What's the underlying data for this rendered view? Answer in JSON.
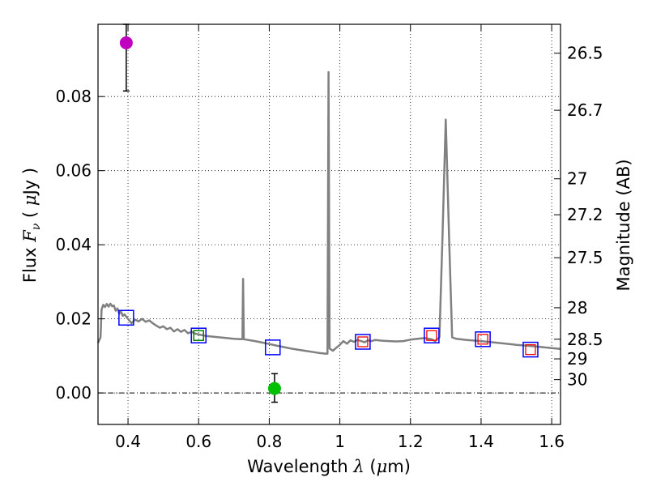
{
  "chart_data": {
    "type": "scatter",
    "xlabel": "Wavelength",
    "xlabel_symbol": "λ",
    "xlabel_unit_pre": "(",
    "xlabel_unit_mu": "μ",
    "xlabel_unit_post": "m)",
    "ylabel_prefix": "Flux",
    "ylabel_symbol": "F",
    "ylabel_subscript": "ν",
    "ylabel_unit_pre": "(",
    "ylabel_unit_mu": "μ",
    "ylabel_unit_post": "Jy )",
    "ylabel_right": "Magnitude (AB)",
    "xlim": [
      0.315,
      1.625
    ],
    "ylim": [
      -0.0085,
      0.0995
    ],
    "grid": true,
    "colors": {
      "spectrum": "#808080",
      "magenta_point": "#bf00bf",
      "green_point": "#00c000",
      "blue_box": "#0000ff",
      "green_box": "#008000",
      "red_box": "#ff0000",
      "errorbar": "#000000"
    },
    "xticks": [
      0.4,
      0.6,
      0.8,
      1.0,
      1.2,
      1.4,
      1.6
    ],
    "xtick_labels": [
      "0.4",
      "0.6",
      "0.8",
      "1",
      "1.2",
      "1.4",
      "1.6"
    ],
    "yticks": [
      0.0,
      0.02,
      0.04,
      0.06,
      0.08
    ],
    "ytick_labels": [
      "0.00",
      "0.02",
      "0.04",
      "0.06",
      "0.08"
    ],
    "right_ticks": [
      {
        "label": "26.5",
        "flux": 0.0917
      },
      {
        "label": "26.7",
        "flux": 0.0763
      },
      {
        "label": "27",
        "flux": 0.0578
      },
      {
        "label": "27.2",
        "flux": 0.0481
      },
      {
        "label": "27.5",
        "flux": 0.0365
      },
      {
        "label": "28",
        "flux": 0.023
      },
      {
        "label": "28.5",
        "flux": 0.0145
      },
      {
        "label": "29",
        "flux": 0.0092
      },
      {
        "label": "30",
        "flux": 0.0036
      }
    ],
    "spectrum": [
      [
        0.315,
        0.0135
      ],
      [
        0.322,
        0.015
      ],
      [
        0.325,
        0.0225
      ],
      [
        0.33,
        0.0238
      ],
      [
        0.335,
        0.0232
      ],
      [
        0.34,
        0.024
      ],
      [
        0.345,
        0.0233
      ],
      [
        0.35,
        0.0241
      ],
      [
        0.355,
        0.0234
      ],
      [
        0.36,
        0.0236
      ],
      [
        0.365,
        0.0222
      ],
      [
        0.37,
        0.0228
      ],
      [
        0.375,
        0.0214
      ],
      [
        0.38,
        0.022
      ],
      [
        0.385,
        0.0208
      ],
      [
        0.39,
        0.0212
      ],
      [
        0.4,
        0.02
      ],
      [
        0.41,
        0.0188
      ],
      [
        0.42,
        0.0198
      ],
      [
        0.43,
        0.0193
      ],
      [
        0.44,
        0.02
      ],
      [
        0.45,
        0.0192
      ],
      [
        0.46,
        0.0196
      ],
      [
        0.47,
        0.0188
      ],
      [
        0.48,
        0.0182
      ],
      [
        0.49,
        0.0176
      ],
      [
        0.5,
        0.018
      ],
      [
        0.51,
        0.0172
      ],
      [
        0.52,
        0.0176
      ],
      [
        0.53,
        0.0166
      ],
      [
        0.54,
        0.0172
      ],
      [
        0.55,
        0.0165
      ],
      [
        0.56,
        0.017
      ],
      [
        0.57,
        0.0161
      ],
      [
        0.58,
        0.0165
      ],
      [
        0.59,
        0.016
      ],
      [
        0.6,
        0.0158
      ],
      [
        0.62,
        0.0154
      ],
      [
        0.64,
        0.0152
      ],
      [
        0.66,
        0.015
      ],
      [
        0.68,
        0.0148
      ],
      [
        0.7,
        0.0146
      ],
      [
        0.72,
        0.0145
      ],
      [
        0.724,
        0.0145
      ],
      [
        0.726,
        0.0308
      ],
      [
        0.728,
        0.0145
      ],
      [
        0.74,
        0.0143
      ],
      [
        0.76,
        0.014
      ],
      [
        0.78,
        0.0136
      ],
      [
        0.8,
        0.0132
      ],
      [
        0.82,
        0.0128
      ],
      [
        0.84,
        0.0124
      ],
      [
        0.86,
        0.012
      ],
      [
        0.88,
        0.0117
      ],
      [
        0.9,
        0.0114
      ],
      [
        0.92,
        0.0111
      ],
      [
        0.94,
        0.0108
      ],
      [
        0.96,
        0.0106
      ],
      [
        0.965,
        0.0106
      ],
      [
        0.968,
        0.0866
      ],
      [
        0.971,
        0.012
      ],
      [
        0.98,
        0.0114
      ],
      [
        0.99,
        0.0122
      ],
      [
        1.0,
        0.013
      ],
      [
        1.01,
        0.014
      ],
      [
        1.02,
        0.0133
      ],
      [
        1.03,
        0.0142
      ],
      [
        1.04,
        0.0138
      ],
      [
        1.05,
        0.0143
      ],
      [
        1.06,
        0.014
      ],
      [
        1.07,
        0.0137
      ],
      [
        1.08,
        0.0142
      ],
      [
        1.09,
        0.014
      ],
      [
        1.1,
        0.0143
      ],
      [
        1.12,
        0.0141
      ],
      [
        1.14,
        0.014
      ],
      [
        1.16,
        0.0139
      ],
      [
        1.18,
        0.014
      ],
      [
        1.2,
        0.0144
      ],
      [
        1.22,
        0.0146
      ],
      [
        1.24,
        0.0148
      ],
      [
        1.26,
        0.0145
      ],
      [
        1.27,
        0.014
      ],
      [
        1.282,
        0.015
      ],
      [
        1.29,
        0.04
      ],
      [
        1.3,
        0.0738
      ],
      [
        1.31,
        0.04
      ],
      [
        1.318,
        0.015
      ],
      [
        1.33,
        0.0146
      ],
      [
        1.36,
        0.0143
      ],
      [
        1.4,
        0.014
      ],
      [
        1.45,
        0.0135
      ],
      [
        1.5,
        0.013
      ],
      [
        1.55,
        0.0126
      ],
      [
        1.6,
        0.0121
      ],
      [
        1.625,
        0.0119
      ]
    ],
    "blue_boxes": [
      [
        0.395,
        0.0203
      ],
      [
        0.6,
        0.0155
      ],
      [
        0.81,
        0.0123
      ],
      [
        1.065,
        0.0138
      ],
      [
        1.26,
        0.0155
      ],
      [
        1.405,
        0.0145
      ],
      [
        1.54,
        0.0117
      ]
    ],
    "green_boxes": [
      [
        0.6,
        0.0155
      ]
    ],
    "red_boxes": [
      [
        1.065,
        0.0138
      ],
      [
        1.26,
        0.0155
      ],
      [
        1.405,
        0.0145
      ],
      [
        1.54,
        0.0117
      ]
    ],
    "points": [
      {
        "x": 0.395,
        "y": 0.0945,
        "err_low": 0.0815,
        "err_high": 0.0995,
        "color": "magenta"
      },
      {
        "x": 0.815,
        "y": 0.0012,
        "err_low": -0.0025,
        "err_high": 0.0052,
        "color": "green"
      }
    ]
  }
}
